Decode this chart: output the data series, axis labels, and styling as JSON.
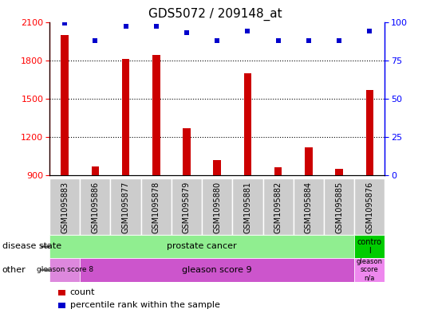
{
  "title": "GDS5072 / 209148_at",
  "samples": [
    "GSM1095883",
    "GSM1095886",
    "GSM1095877",
    "GSM1095878",
    "GSM1095879",
    "GSM1095880",
    "GSM1095881",
    "GSM1095882",
    "GSM1095884",
    "GSM1095885",
    "GSM1095876"
  ],
  "counts": [
    2000,
    970,
    1810,
    1840,
    1270,
    1020,
    1700,
    960,
    1120,
    950,
    1570
  ],
  "percentile": [
    99,
    88,
    97,
    97,
    93,
    88,
    94,
    88,
    88,
    88,
    94
  ],
  "ylim_left": [
    900,
    2100
  ],
  "ylim_right": [
    0,
    100
  ],
  "yticks_left": [
    900,
    1200,
    1500,
    1800,
    2100
  ],
  "yticks_right": [
    0,
    25,
    50,
    75,
    100
  ],
  "bar_color": "#cc0000",
  "dot_color": "#0000cc",
  "plot_bg": "#ffffff",
  "xlabel_bg": "#cccccc",
  "xlabel_last_bg": "#cccccc",
  "ds_prostate_color": "#90ee90",
  "ds_control_color": "#00cc00",
  "ot_g8_color": "#dd88dd",
  "ot_g9_color": "#cc55cc",
  "ot_na_color": "#ee88ee",
  "row_label_disease": "disease state",
  "row_label_other": "other",
  "legend_count": "count",
  "legend_percentile": "percentile rank within the sample",
  "bar_width": 0.25
}
